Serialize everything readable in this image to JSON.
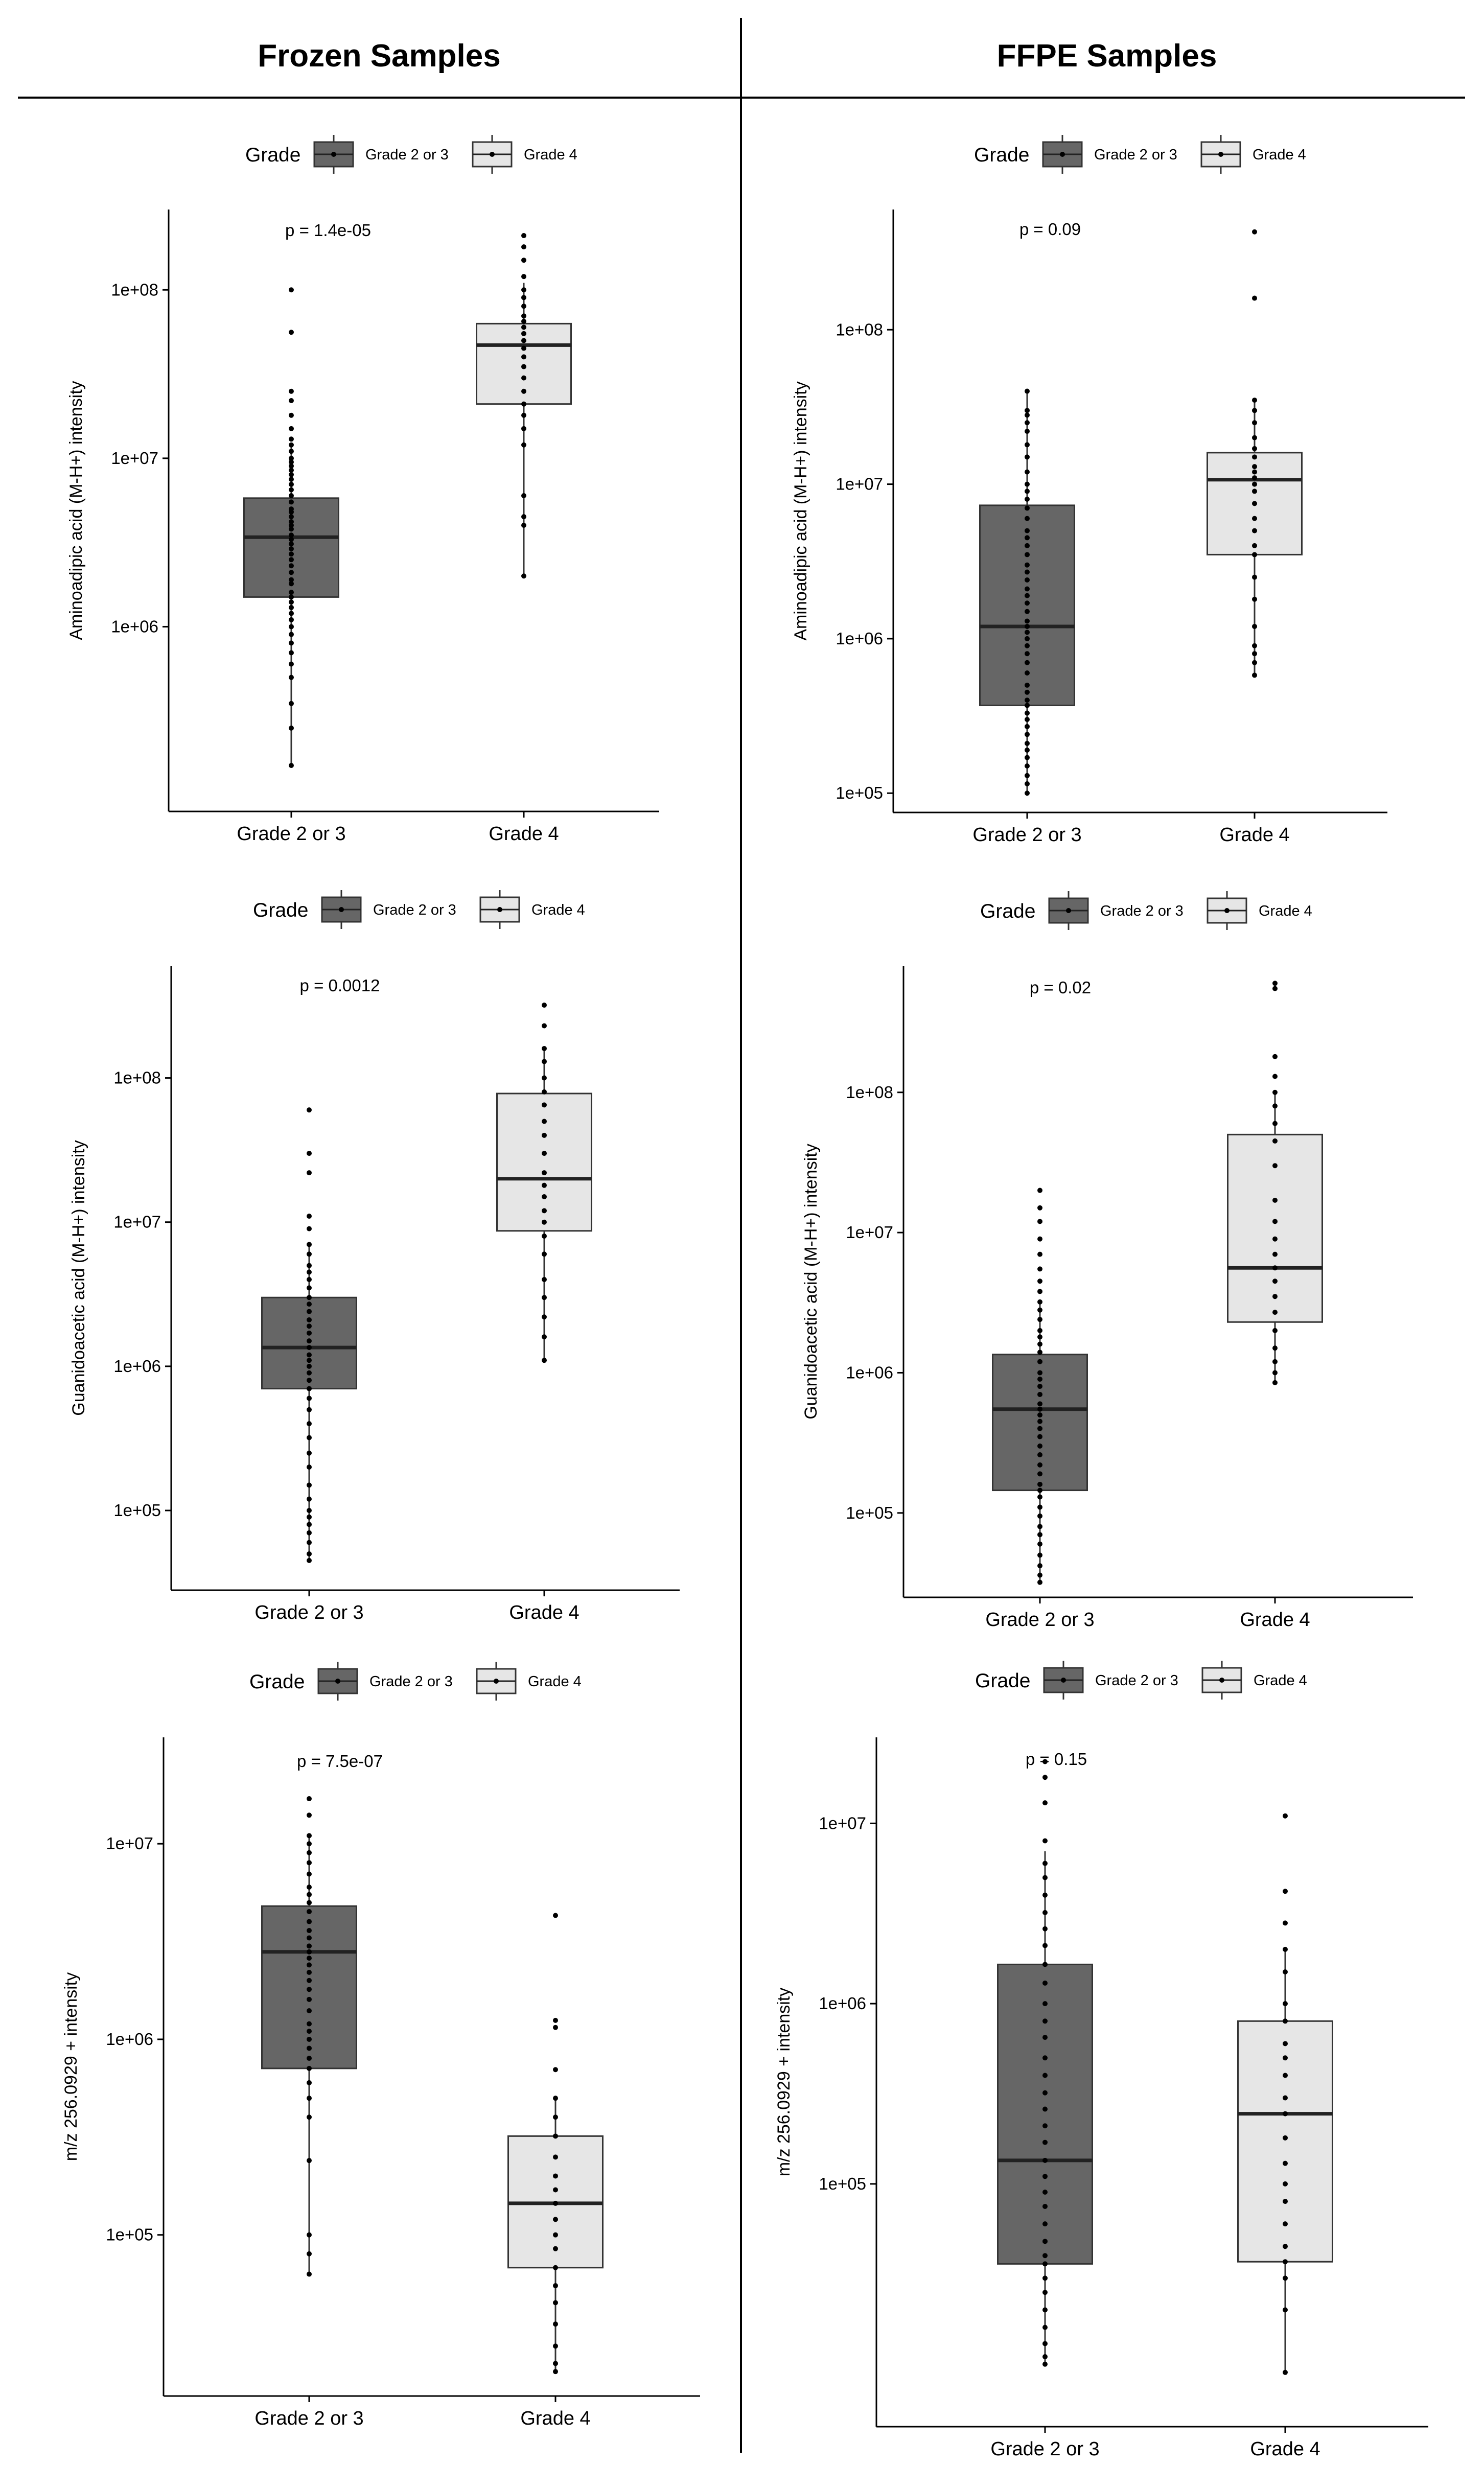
{
  "headers": {
    "left": "Frozen Samples",
    "right": "FFPE Samples"
  },
  "colors": {
    "group_dark": "#666666",
    "group_light": "#e6e6e6",
    "outline": "#333333",
    "point": "#000000"
  },
  "chart_data": [
    {
      "type": "box",
      "column": "Frozen Samples",
      "ylabel": "Aminoadipic acid (M-H+) intensity",
      "yscale": "log10",
      "ylim": [
        80000,
        300000000
      ],
      "yticks": [
        1000000,
        10000000,
        100000000
      ],
      "yticklabels": [
        "1e+06",
        "1e+07",
        "1e+08"
      ],
      "annotation": "p = 1.4e-05",
      "legend": {
        "title": "Grade",
        "entries": [
          "Grade 2 or 3",
          "Grade 4"
        ]
      },
      "categories": [
        "Grade 2 or 3",
        "Grade 4"
      ],
      "boxes": [
        {
          "q1": 1500000,
          "median": 3400000,
          "q3": 5800000,
          "whisker_low": 150000,
          "whisker_high": 12000000,
          "points": [
            100000000,
            56000000,
            25000000,
            22000000,
            18000000,
            15000000,
            13000000,
            12000000,
            11000000,
            10000000,
            9500000,
            9000000,
            8500000,
            8000000,
            7500000,
            7000000,
            6500000,
            6000000,
            5500000,
            5000000,
            4800000,
            4500000,
            4200000,
            4000000,
            3800000,
            3500000,
            3300000,
            3100000,
            2900000,
            2700000,
            2500000,
            2300000,
            2100000,
            1900000,
            1800000,
            1600000,
            1500000,
            1400000,
            1300000,
            1200000,
            1100000,
            1000000,
            900000,
            800000,
            700000,
            600000,
            500000,
            350000,
            250000,
            150000
          ]
        },
        {
          "q1": 21000000,
          "median": 47000000,
          "q3": 63000000,
          "whisker_low": 2000000,
          "whisker_high": 110000000,
          "points": [
            210000000,
            180000000,
            150000000,
            120000000,
            100000000,
            90000000,
            80000000,
            70000000,
            65000000,
            60000000,
            55000000,
            50000000,
            45000000,
            40000000,
            35000000,
            30000000,
            25000000,
            21000000,
            18000000,
            15000000,
            12000000,
            6000000,
            4500000,
            4000000,
            2000000
          ]
        }
      ]
    },
    {
      "type": "box",
      "column": "FFPE Samples",
      "ylabel": "Aminoadipic acid (M-H+) intensity",
      "yscale": "log10",
      "ylim": [
        75000,
        600000000
      ],
      "yticks": [
        100000,
        1000000,
        10000000,
        100000000
      ],
      "yticklabels": [
        "1e+05",
        "1e+06",
        "1e+07",
        "1e+08"
      ],
      "annotation": "p = 0.09",
      "legend": {
        "title": "Grade",
        "entries": [
          "Grade 2 or 3",
          "Grade 4"
        ]
      },
      "categories": [
        "Grade 2 or 3",
        "Grade 4"
      ],
      "boxes": [
        {
          "q1": 370000,
          "median": 1200000,
          "q3": 7300000,
          "whisker_low": 100000,
          "whisker_high": 40000000,
          "points": [
            40000000,
            30000000,
            28000000,
            25000000,
            22000000,
            18000000,
            15000000,
            12000000,
            10000000,
            9000000,
            8000000,
            7000000,
            6000000,
            5000000,
            4500000,
            4000000,
            3500000,
            3000000,
            2700000,
            2400000,
            2100000,
            1900000,
            1700000,
            1500000,
            1300000,
            1200000,
            1100000,
            1000000,
            900000,
            800000,
            700000,
            600000,
            500000,
            450000,
            400000,
            370000,
            330000,
            300000,
            270000,
            240000,
            210000,
            190000,
            170000,
            150000,
            130000,
            115000,
            100000
          ]
        },
        {
          "q1": 3500000,
          "median": 10700000,
          "q3": 16000000,
          "whisker_low": 580000,
          "whisker_high": 35000000,
          "points": [
            430000000,
            160000000,
            35000000,
            30000000,
            25000000,
            20000000,
            17000000,
            15000000,
            13000000,
            12000000,
            11000000,
            10000000,
            9000000,
            7500000,
            6000000,
            5000000,
            4000000,
            3500000,
            2500000,
            1800000,
            1200000,
            900000,
            800000,
            700000,
            580000
          ]
        }
      ]
    },
    {
      "type": "box",
      "column": "Frozen Samples",
      "ylabel": "Guanidoacetic acid (M-H+) intensity",
      "yscale": "log10",
      "ylim": [
        28000,
        600000000
      ],
      "yticks": [
        100000,
        1000000,
        10000000,
        100000000
      ],
      "yticklabels": [
        "1e+05",
        "1e+06",
        "1e+07",
        "1e+08"
      ],
      "annotation": "p = 0.0012",
      "legend": {
        "title": "Grade",
        "entries": [
          "Grade 2 or 3",
          "Grade 4"
        ]
      },
      "categories": [
        "Grade 2 or 3",
        "Grade 4"
      ],
      "boxes": [
        {
          "q1": 700000,
          "median": 1350000,
          "q3": 3000000,
          "whisker_low": 45000,
          "whisker_high": 7000000,
          "points": [
            60000000,
            30000000,
            22000000,
            11000000,
            9000000,
            7000000,
            6000000,
            5000000,
            4500000,
            4000000,
            3500000,
            3000000,
            2700000,
            2400000,
            2100000,
            1900000,
            1700000,
            1500000,
            1350000,
            1200000,
            1100000,
            1000000,
            900000,
            800000,
            700000,
            600000,
            500000,
            400000,
            320000,
            250000,
            200000,
            150000,
            120000,
            100000,
            90000,
            80000,
            70000,
            60000,
            50000,
            45000
          ]
        },
        {
          "q1": 8700000,
          "median": 20000000,
          "q3": 78000000,
          "whisker_low": 1100000,
          "whisker_high": 160000000,
          "points": [
            320000000,
            230000000,
            160000000,
            130000000,
            100000000,
            80000000,
            65000000,
            50000000,
            40000000,
            30000000,
            22000000,
            18000000,
            15000000,
            12000000,
            10000000,
            8000000,
            6000000,
            4000000,
            3000000,
            2200000,
            1600000,
            1100000
          ]
        }
      ]
    },
    {
      "type": "box",
      "column": "FFPE Samples",
      "ylabel": "Guanidoacetic acid (M-H+) intensity",
      "yscale": "log10",
      "ylim": [
        25000,
        800000000
      ],
      "yticks": [
        100000,
        1000000,
        10000000,
        100000000
      ],
      "yticklabels": [
        "1e+05",
        "1e+06",
        "1e+07",
        "1e+08"
      ],
      "annotation": "p = 0.02",
      "legend": {
        "title": "Grade",
        "entries": [
          "Grade 2 or 3",
          "Grade 4"
        ]
      },
      "categories": [
        "Grade 2 or 3",
        "Grade 4"
      ],
      "boxes": [
        {
          "q1": 145000,
          "median": 550000,
          "q3": 1350000,
          "whisker_low": 32000,
          "whisker_high": 3200000,
          "points": [
            20000000,
            15000000,
            12000000,
            9000000,
            7000000,
            5500000,
            4500000,
            3800000,
            3200000,
            2800000,
            2400000,
            2000000,
            1800000,
            1600000,
            1400000,
            1200000,
            1000000,
            900000,
            800000,
            700000,
            600000,
            550000,
            500000,
            450000,
            400000,
            350000,
            300000,
            260000,
            220000,
            190000,
            160000,
            145000,
            130000,
            110000,
            95000,
            80000,
            70000,
            60000,
            50000,
            42000,
            36000,
            32000
          ]
        },
        {
          "q1": 2300000,
          "median": 5600000,
          "q3": 50000000,
          "whisker_low": 850000,
          "whisker_high": 100000000,
          "points": [
            600000000,
            550000000,
            180000000,
            130000000,
            100000000,
            80000000,
            60000000,
            45000000,
            30000000,
            17000000,
            12000000,
            9000000,
            7000000,
            5600000,
            4500000,
            3500000,
            2700000,
            2000000,
            1500000,
            1200000,
            1000000,
            850000
          ]
        }
      ]
    },
    {
      "type": "box",
      "column": "Frozen Samples",
      "ylabel": "m/z 256.0929 + intensity",
      "yscale": "log10",
      "ylim": [
        15000,
        35000000
      ],
      "yticks": [
        100000,
        1000000,
        10000000
      ],
      "yticklabels": [
        "1e+05",
        "1e+06",
        "1e+07"
      ],
      "annotation": "p = 7.5e-07",
      "legend": {
        "title": "Grade",
        "entries": [
          "Grade 2 or 3",
          "Grade 4"
        ]
      },
      "categories": [
        "Grade 2 or 3",
        "Grade 4"
      ],
      "boxes": [
        {
          "q1": 710000,
          "median": 2800000,
          "q3": 4800000,
          "whisker_low": 63000,
          "whisker_high": 11000000,
          "points": [
            17000000,
            14000000,
            11000000,
            10000000,
            9000000,
            8000000,
            7000000,
            6000000,
            5500000,
            5000000,
            4500000,
            4000000,
            3600000,
            3300000,
            3000000,
            2800000,
            2600000,
            2400000,
            2200000,
            2000000,
            1800000,
            1600000,
            1400000,
            1200000,
            1100000,
            1000000,
            900000,
            800000,
            710000,
            600000,
            500000,
            400000,
            240000,
            100000,
            80000,
            63000
          ]
        },
        {
          "q1": 68000,
          "median": 145000,
          "q3": 320000,
          "whisker_low": 20000,
          "whisker_high": 500000,
          "points": [
            4300000,
            1250000,
            1150000,
            700000,
            500000,
            400000,
            320000,
            250000,
            200000,
            170000,
            145000,
            120000,
            100000,
            85000,
            68000,
            55000,
            45000,
            35000,
            27000,
            22000,
            20000
          ]
        }
      ]
    },
    {
      "type": "box",
      "column": "FFPE Samples",
      "ylabel": "m/z 256.0929 + intensity",
      "yscale": "log10",
      "ylim": [
        4500,
        30000000
      ],
      "yticks": [
        100000,
        1000000,
        10000000
      ],
      "yticklabels": [
        "1e+05",
        "1e+06",
        "1e+07"
      ],
      "annotation": "p = 0.15",
      "legend": {
        "title": "Grade",
        "entries": [
          "Grade 2 or 3",
          "Grade 4"
        ]
      },
      "categories": [
        "Grade 2 or 3",
        "Grade 4"
      ],
      "boxes": [
        {
          "q1": 36000,
          "median": 135000,
          "q3": 1650000,
          "whisker_low": 10000,
          "whisker_high": 7000000,
          "points": [
            22000000,
            18000000,
            13000000,
            8000000,
            6000000,
            5000000,
            4000000,
            3200000,
            2600000,
            2100000,
            1650000,
            1300000,
            1000000,
            800000,
            650000,
            500000,
            400000,
            320000,
            260000,
            210000,
            170000,
            135000,
            110000,
            90000,
            75000,
            60000,
            48000,
            40000,
            36000,
            30000,
            25000,
            20000,
            16000,
            13000,
            11000,
            10000
          ]
        },
        {
          "q1": 37000,
          "median": 245000,
          "q3": 800000,
          "whisker_low": 9000,
          "whisker_high": 2000000,
          "points": [
            11000000,
            4200000,
            2800000,
            2000000,
            1500000,
            1000000,
            800000,
            600000,
            500000,
            400000,
            300000,
            245000,
            180000,
            130000,
            100000,
            80000,
            60000,
            45000,
            37000,
            30000,
            20000,
            9000
          ]
        }
      ]
    }
  ]
}
